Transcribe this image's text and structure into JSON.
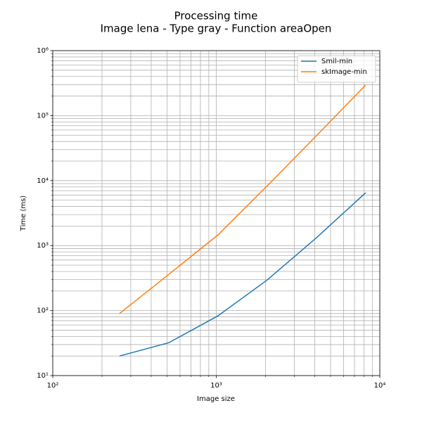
{
  "chart_data": {
    "type": "line",
    "title": "Processing time",
    "subtitle": "Image lena - Type gray - Function areaOpen",
    "xlabel": "Image size",
    "ylabel": "Time (ms)",
    "x": [
      256,
      512,
      1024,
      2048,
      4096,
      8192
    ],
    "series": [
      {
        "name": "Smil-min",
        "color": "#1f77b4",
        "values": [
          20,
          32,
          83,
          296,
          1320,
          6500
        ]
      },
      {
        "name": "skImage-min",
        "color": "#ff7f0e",
        "values": [
          90,
          360,
          1460,
          8300,
          49000,
          295000
        ]
      }
    ],
    "xscale": "log",
    "yscale": "log",
    "xlim": [
      100,
      10000
    ],
    "ylim": [
      10,
      1000000
    ],
    "xticks": [
      {
        "value": 100,
        "label": "10²"
      },
      {
        "value": 1000,
        "label": "10³"
      },
      {
        "value": 10000,
        "label": "10⁴"
      }
    ],
    "yticks": [
      {
        "value": 10,
        "label": "10¹"
      },
      {
        "value": 100,
        "label": "10²"
      },
      {
        "value": 1000,
        "label": "10³"
      },
      {
        "value": 10000,
        "label": "10⁴"
      },
      {
        "value": 100000,
        "label": "10⁵"
      },
      {
        "value": 1000000,
        "label": "10⁶"
      }
    ],
    "xminorticks": [
      200,
      300,
      400,
      500,
      600,
      700,
      800,
      900,
      2000,
      3000,
      4000,
      5000,
      6000,
      7000,
      8000,
      9000
    ],
    "yminorticks": [
      20,
      30,
      40,
      50,
      60,
      70,
      80,
      90,
      200,
      300,
      400,
      500,
      600,
      700,
      800,
      900,
      2000,
      3000,
      4000,
      5000,
      6000,
      7000,
      8000,
      9000,
      20000,
      30000,
      40000,
      50000,
      60000,
      70000,
      80000,
      90000,
      200000,
      300000,
      400000,
      500000,
      600000,
      700000,
      800000,
      900000
    ],
    "grid": true,
    "legend": "upper right"
  }
}
